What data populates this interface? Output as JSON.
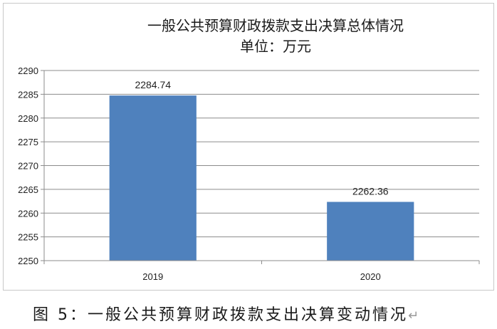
{
  "chart_data": {
    "type": "bar",
    "title": "一般公共预算财政拨款支出决算总体情况",
    "subtitle": "单位：万元",
    "categories": [
      "2019",
      "2020"
    ],
    "values": [
      2284.74,
      2262.36
    ],
    "data_labels": [
      "2284.74",
      "2262.36"
    ],
    "ylim": [
      2250,
      2290
    ],
    "yticks": [
      2250,
      2255,
      2260,
      2265,
      2270,
      2275,
      2280,
      2285,
      2290
    ],
    "xlabel": "",
    "ylabel": "",
    "grid": true,
    "legend": "none",
    "bar_color": "#4f81bd",
    "grid_color": "#8c8c8c"
  },
  "caption": {
    "text": "图 5：一般公共预算财政拨款支出决算变动情况",
    "return_mark": "↵"
  }
}
